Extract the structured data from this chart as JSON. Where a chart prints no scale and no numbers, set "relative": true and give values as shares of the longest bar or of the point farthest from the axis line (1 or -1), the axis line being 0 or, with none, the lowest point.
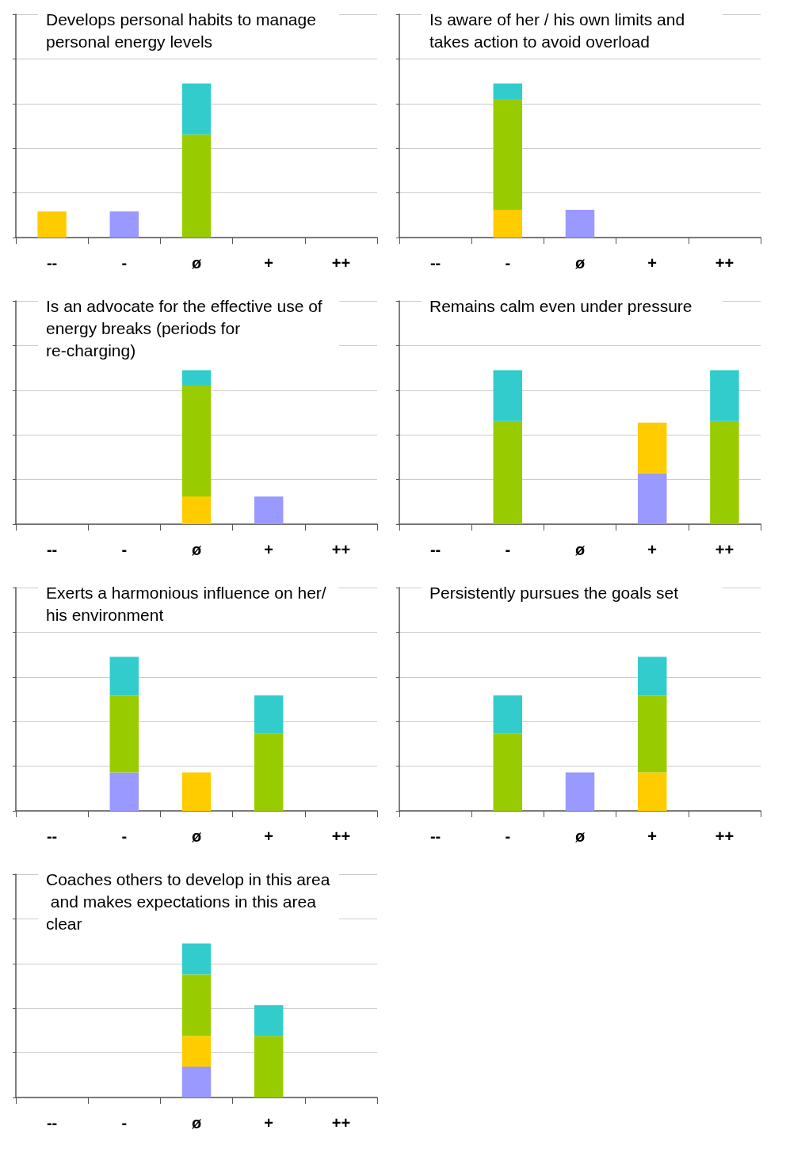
{
  "chart_data": [
    {
      "type": "bar",
      "title": "Develops personal habits to manage personal energy levels",
      "categories": [
        "--",
        "-",
        "ø",
        "+",
        "++"
      ],
      "stacked": true,
      "relative": true,
      "grid": "y",
      "series": [
        {
          "color": "#9999ff",
          "values": [
            null,
            0.17,
            null,
            null,
            null
          ]
        },
        {
          "color": "#ffcc00",
          "values": [
            0.17,
            null,
            null,
            null,
            null
          ]
        },
        {
          "color": "#99cc00",
          "values": [
            null,
            null,
            0.67,
            null,
            null
          ]
        },
        {
          "color": "#33cccc",
          "values": [
            null,
            null,
            0.33,
            null,
            null
          ]
        }
      ]
    },
    {
      "type": "bar",
      "title": "Is aware of her / his own limits and takes action to avoid overload",
      "categories": [
        "--",
        "-",
        "ø",
        "+",
        "++"
      ],
      "stacked": true,
      "relative": true,
      "grid": "y",
      "series": [
        {
          "color": "#9999ff",
          "values": [
            null,
            null,
            0.18,
            null,
            null
          ]
        },
        {
          "color": "#ffcc00",
          "values": [
            null,
            0.18,
            null,
            null,
            null
          ]
        },
        {
          "color": "#99cc00",
          "values": [
            null,
            0.72,
            null,
            null,
            null
          ]
        },
        {
          "color": "#33cccc",
          "values": [
            null,
            0.1,
            null,
            null,
            null
          ]
        }
      ]
    },
    {
      "type": "bar",
      "title": "Is an advocate for the effective use of energy breaks (periods for re-charging)",
      "categories": [
        "--",
        "-",
        "ø",
        "+",
        "++"
      ],
      "stacked": true,
      "relative": true,
      "grid": "y",
      "series": [
        {
          "color": "#9999ff",
          "values": [
            null,
            null,
            null,
            0.18,
            null
          ]
        },
        {
          "color": "#ffcc00",
          "values": [
            null,
            null,
            0.18,
            null,
            null
          ]
        },
        {
          "color": "#99cc00",
          "values": [
            null,
            null,
            0.72,
            null,
            null
          ]
        },
        {
          "color": "#33cccc",
          "values": [
            null,
            null,
            0.1,
            null,
            null
          ]
        }
      ]
    },
    {
      "type": "bar",
      "title": "Remains calm even under pressure",
      "categories": [
        "--",
        "-",
        "ø",
        "+",
        "++"
      ],
      "stacked": true,
      "relative": true,
      "grid": "y",
      "series": [
        {
          "color": "#9999ff",
          "values": [
            null,
            null,
            null,
            0.33,
            null
          ]
        },
        {
          "color": "#ffcc00",
          "values": [
            null,
            null,
            null,
            0.33,
            null
          ]
        },
        {
          "color": "#99cc00",
          "values": [
            null,
            0.67,
            null,
            null,
            0.67
          ]
        },
        {
          "color": "#33cccc",
          "values": [
            null,
            0.33,
            null,
            null,
            0.33
          ]
        }
      ]
    },
    {
      "type": "bar",
      "title": "Exerts a harmonious influence on her/his environment",
      "categories": [
        "--",
        "-",
        "ø",
        "+",
        "++"
      ],
      "stacked": true,
      "relative": true,
      "grid": "y",
      "series": [
        {
          "color": "#9999ff",
          "values": [
            null,
            0.25,
            null,
            null,
            null
          ]
        },
        {
          "color": "#ffcc00",
          "values": [
            null,
            null,
            0.25,
            null,
            null
          ]
        },
        {
          "color": "#99cc00",
          "values": [
            null,
            0.5,
            null,
            0.5,
            null
          ]
        },
        {
          "color": "#33cccc",
          "values": [
            null,
            0.25,
            null,
            0.25,
            null
          ]
        }
      ]
    },
    {
      "type": "bar",
      "title": "Persistently pursues the goals set",
      "categories": [
        "--",
        "-",
        "ø",
        "+",
        "++"
      ],
      "stacked": true,
      "relative": true,
      "grid": "y",
      "series": [
        {
          "color": "#9999ff",
          "values": [
            null,
            null,
            0.25,
            null,
            null
          ]
        },
        {
          "color": "#ffcc00",
          "values": [
            null,
            null,
            null,
            0.25,
            null
          ]
        },
        {
          "color": "#99cc00",
          "values": [
            null,
            0.5,
            null,
            0.5,
            null
          ]
        },
        {
          "color": "#33cccc",
          "values": [
            null,
            0.25,
            null,
            0.25,
            null
          ]
        }
      ]
    },
    {
      "type": "bar",
      "title": "Coaches others to develop in this area and makes expectations in this area clear",
      "categories": [
        "--",
        "-",
        "ø",
        "+",
        "++"
      ],
      "stacked": true,
      "relative": true,
      "grid": "y",
      "series": [
        {
          "color": "#9999ff",
          "values": [
            null,
            null,
            0.2,
            null,
            null
          ]
        },
        {
          "color": "#ffcc00",
          "values": [
            null,
            null,
            0.2,
            null,
            null
          ]
        },
        {
          "color": "#99cc00",
          "values": [
            null,
            null,
            0.4,
            0.4,
            null
          ]
        },
        {
          "color": "#33cccc",
          "values": [
            null,
            null,
            0.2,
            0.2,
            null
          ]
        }
      ]
    }
  ]
}
